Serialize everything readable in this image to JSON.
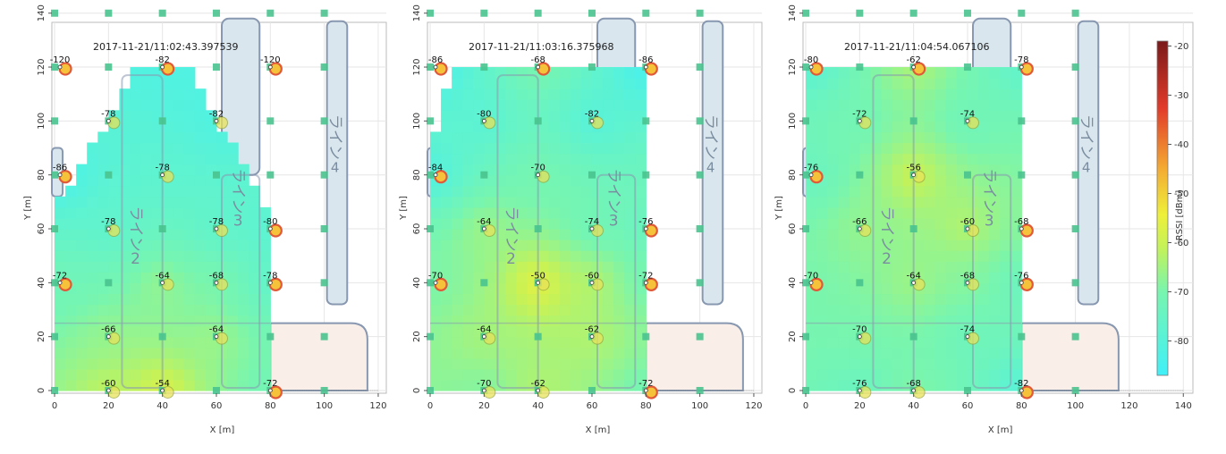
{
  "chart_data": [
    {
      "type": "heatmap",
      "timestamp": "2017-11-21/11:02:43.397539",
      "xlabel": "X [m]",
      "ylabel": "Y [m]",
      "xlim": [
        0,
        120
      ],
      "ylim": [
        0,
        140
      ],
      "x_ticks": [
        "0",
        "20",
        "40",
        "60",
        "80",
        "100",
        "120"
      ],
      "y_ticks": [
        "0",
        "20",
        "40",
        "60",
        "80",
        "100",
        "120",
        "140"
      ],
      "sensors": [
        {
          "x": 2,
          "y": 120,
          "value": "-120"
        },
        {
          "x": 40,
          "y": 120,
          "value": "-82"
        },
        {
          "x": 80,
          "y": 120,
          "value": "-120"
        },
        {
          "x": 20,
          "y": 100,
          "value": "-78"
        },
        {
          "x": 60,
          "y": 100,
          "value": "-82"
        },
        {
          "x": 2,
          "y": 80,
          "value": "-86"
        },
        {
          "x": 40,
          "y": 80,
          "value": "-78"
        },
        {
          "x": 20,
          "y": 60,
          "value": "-78"
        },
        {
          "x": 60,
          "y": 60,
          "value": "-78"
        },
        {
          "x": 80,
          "y": 60,
          "value": "-80"
        },
        {
          "x": 2,
          "y": 40,
          "value": "-72"
        },
        {
          "x": 40,
          "y": 40,
          "value": "-64"
        },
        {
          "x": 60,
          "y": 40,
          "value": "-68"
        },
        {
          "x": 80,
          "y": 40,
          "value": "-78"
        },
        {
          "x": 20,
          "y": 20,
          "value": "-66"
        },
        {
          "x": 60,
          "y": 20,
          "value": "-64"
        },
        {
          "x": 20,
          "y": 0,
          "value": "-60"
        },
        {
          "x": 40,
          "y": 0,
          "value": "-54"
        },
        {
          "x": 80,
          "y": 0,
          "value": "-72"
        }
      ]
    },
    {
      "type": "heatmap",
      "timestamp": "2017-11-21/11:03:16.375968",
      "xlabel": "X [m]",
      "ylabel": "Y [m]",
      "xlim": [
        0,
        120
      ],
      "ylim": [
        0,
        140
      ],
      "x_ticks": [
        "0",
        "20",
        "40",
        "60",
        "80",
        "100",
        "120"
      ],
      "y_ticks": [
        "0",
        "20",
        "40",
        "60",
        "80",
        "100",
        "120",
        "140"
      ],
      "sensors": [
        {
          "x": 2,
          "y": 120,
          "value": "-86"
        },
        {
          "x": 40,
          "y": 120,
          "value": "-68"
        },
        {
          "x": 80,
          "y": 120,
          "value": "-86"
        },
        {
          "x": 20,
          "y": 100,
          "value": "-80"
        },
        {
          "x": 60,
          "y": 100,
          "value": "-82"
        },
        {
          "x": 2,
          "y": 80,
          "value": "-84"
        },
        {
          "x": 40,
          "y": 80,
          "value": "-70"
        },
        {
          "x": 20,
          "y": 60,
          "value": "-64"
        },
        {
          "x": 60,
          "y": 60,
          "value": "-74"
        },
        {
          "x": 80,
          "y": 60,
          "value": "-76"
        },
        {
          "x": 2,
          "y": 40,
          "value": "-70"
        },
        {
          "x": 40,
          "y": 40,
          "value": "-50"
        },
        {
          "x": 60,
          "y": 40,
          "value": "-60"
        },
        {
          "x": 80,
          "y": 40,
          "value": "-72"
        },
        {
          "x": 20,
          "y": 20,
          "value": "-64"
        },
        {
          "x": 60,
          "y": 20,
          "value": "-62"
        },
        {
          "x": 20,
          "y": 0,
          "value": "-70"
        },
        {
          "x": 40,
          "y": 0,
          "value": "-62"
        },
        {
          "x": 80,
          "y": 0,
          "value": "-72"
        }
      ]
    },
    {
      "type": "heatmap",
      "timestamp": "2017-11-21/11:04:54.067106",
      "xlabel": "X [m]",
      "ylabel": "Y [m]",
      "xlim": [
        0,
        140
      ],
      "ylim": [
        0,
        140
      ],
      "x_ticks": [
        "0",
        "20",
        "40",
        "60",
        "80",
        "100",
        "120",
        "140"
      ],
      "y_ticks": [
        "0",
        "20",
        "40",
        "60",
        "80",
        "100",
        "120",
        "140"
      ],
      "sensors": [
        {
          "x": 2,
          "y": 120,
          "value": "-80"
        },
        {
          "x": 40,
          "y": 120,
          "value": "-62"
        },
        {
          "x": 80,
          "y": 120,
          "value": "-78"
        },
        {
          "x": 20,
          "y": 100,
          "value": "-72"
        },
        {
          "x": 60,
          "y": 100,
          "value": "-74"
        },
        {
          "x": 2,
          "y": 80,
          "value": "-76"
        },
        {
          "x": 40,
          "y": 80,
          "value": "-56"
        },
        {
          "x": 20,
          "y": 60,
          "value": "-66"
        },
        {
          "x": 60,
          "y": 60,
          "value": "-60"
        },
        {
          "x": 80,
          "y": 60,
          "value": "-68"
        },
        {
          "x": 2,
          "y": 40,
          "value": "-70"
        },
        {
          "x": 40,
          "y": 40,
          "value": "-64"
        },
        {
          "x": 60,
          "y": 40,
          "value": "-68"
        },
        {
          "x": 80,
          "y": 40,
          "value": "-76"
        },
        {
          "x": 20,
          "y": 20,
          "value": "-70"
        },
        {
          "x": 60,
          "y": 20,
          "value": "-74"
        },
        {
          "x": 20,
          "y": 0,
          "value": "-76"
        },
        {
          "x": 40,
          "y": 0,
          "value": "-68"
        },
        {
          "x": 80,
          "y": 0,
          "value": "-82"
        }
      ],
      "colorbar": {
        "label": "RSSI [dBm]",
        "ticks": [
          "-20",
          "-30",
          "-40",
          "-50",
          "-60",
          "-70",
          "-80"
        ],
        "range": [
          -87,
          -19
        ]
      }
    }
  ],
  "floor_labels": {
    "line2": [
      "ラ",
      "イ",
      "ン",
      "2"
    ],
    "line3": [
      "ラ",
      "イ",
      "ン",
      "3"
    ],
    "line4": [
      "ラ",
      "イ",
      "ン",
      "4"
    ]
  },
  "colors": {
    "low": "#40f0f8",
    "mid": "#eef03a",
    "high": "#e23a2a",
    "max": "#7a1a1a",
    "grid": "#e6e6e6",
    "line_outline": "#8898b0",
    "line_fill": "#dae6ee",
    "area_fill": "#faeee9",
    "green_marker": "#49c38e"
  }
}
